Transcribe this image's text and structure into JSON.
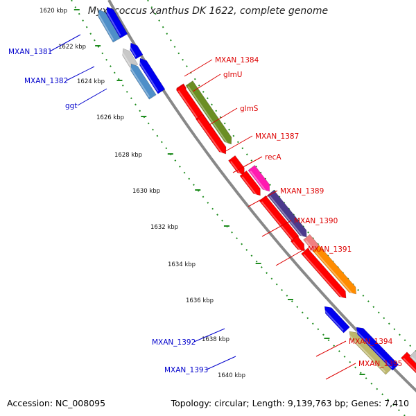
{
  "title": "Myxococcus xanthus DK 1622, complete genome",
  "footer": {
    "accession": "Accession: NC_008095",
    "summary": "Topology: circular; Length: 9,139,763 bp; Genes: 7,410"
  },
  "colors": {
    "backbone": "#888888",
    "dotted_track": "#1e8c1e",
    "forward_label": "#0000cc",
    "reverse_label": "#dd0000",
    "red": "#ff0000",
    "blue": "#0000ee",
    "steel": "#4f8fc8",
    "olive": "#6b8e23",
    "magenta": "#ff1ab0",
    "purple": "#4b3a8c",
    "salmon": "#f08080",
    "orange": "#ff8c00",
    "khaki": "#bdb76b",
    "gray": "#c8c8c8"
  },
  "kbp_ticks": [
    "1620 kbp",
    "1622 kbp",
    "1624 kbp",
    "1626 kbp",
    "1628 kbp",
    "1630 kbp",
    "1632 kbp",
    "1634 kbp",
    "1636 kbp",
    "1638 kbp",
    "1640 kbp"
  ],
  "genes_forward": [
    {
      "label": "MXAN_1381"
    },
    {
      "label": "MXAN_1382"
    },
    {
      "label": "ggt"
    },
    {
      "label": "MXAN_1392"
    },
    {
      "label": "MXAN_1393"
    }
  ],
  "genes_reverse": [
    {
      "label": "MXAN_1384"
    },
    {
      "label": "glmU"
    },
    {
      "label": "glmS"
    },
    {
      "label": "MXAN_1387"
    },
    {
      "label": "recA"
    },
    {
      "label": "MXAN_1389"
    },
    {
      "label": "MXAN_1390"
    },
    {
      "label": "MXAN_1391"
    },
    {
      "label": "MXAN_1394"
    },
    {
      "label": "MXAN_1395"
    }
  ]
}
